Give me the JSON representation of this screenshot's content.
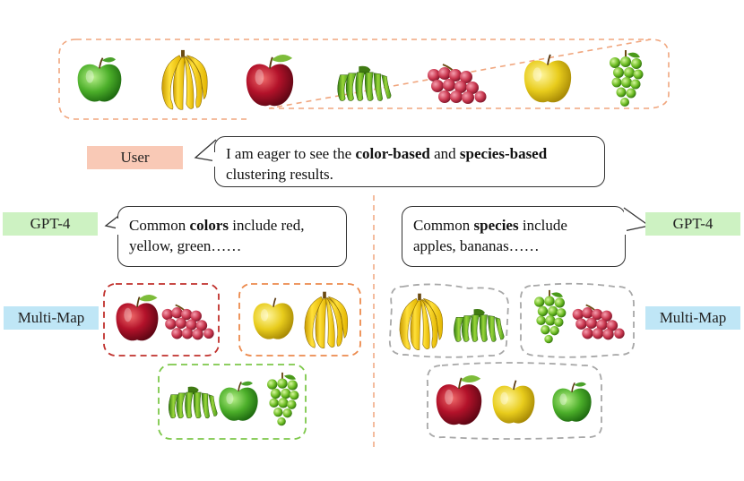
{
  "user_label": "User",
  "user_message": {
    "line1_pre": "I am eager to see the ",
    "bold1": "color-based",
    "mid": " and ",
    "bold2": "species-based",
    "line2": "clustering results."
  },
  "left": {
    "model_label": "GPT-4",
    "response": {
      "pre": "Common ",
      "bold": "colors",
      "line1_post": " include red,",
      "line2": "yellow, green……"
    },
    "map_label": "Multi-Map"
  },
  "right": {
    "model_label": "GPT-4",
    "response": {
      "pre": "Common ",
      "bold": "species",
      "line1_post": " include",
      "line2": "apples, bananas……"
    },
    "map_label": "Multi-Map"
  },
  "colors": {
    "top_border": "#f0a67e",
    "red_cluster": "#c0302c",
    "yellow_cluster": "#ec8a4d",
    "green_cluster": "#7dc84a",
    "species_cluster": "#a8a8a8",
    "divider": "#f0a67e"
  },
  "icons": [
    "green-apple-icon",
    "banana-bunch-icon",
    "red-apple-icon",
    "green-banana-icon",
    "red-grapes-icon",
    "yellow-apple-icon",
    "green-grapes-icon"
  ]
}
